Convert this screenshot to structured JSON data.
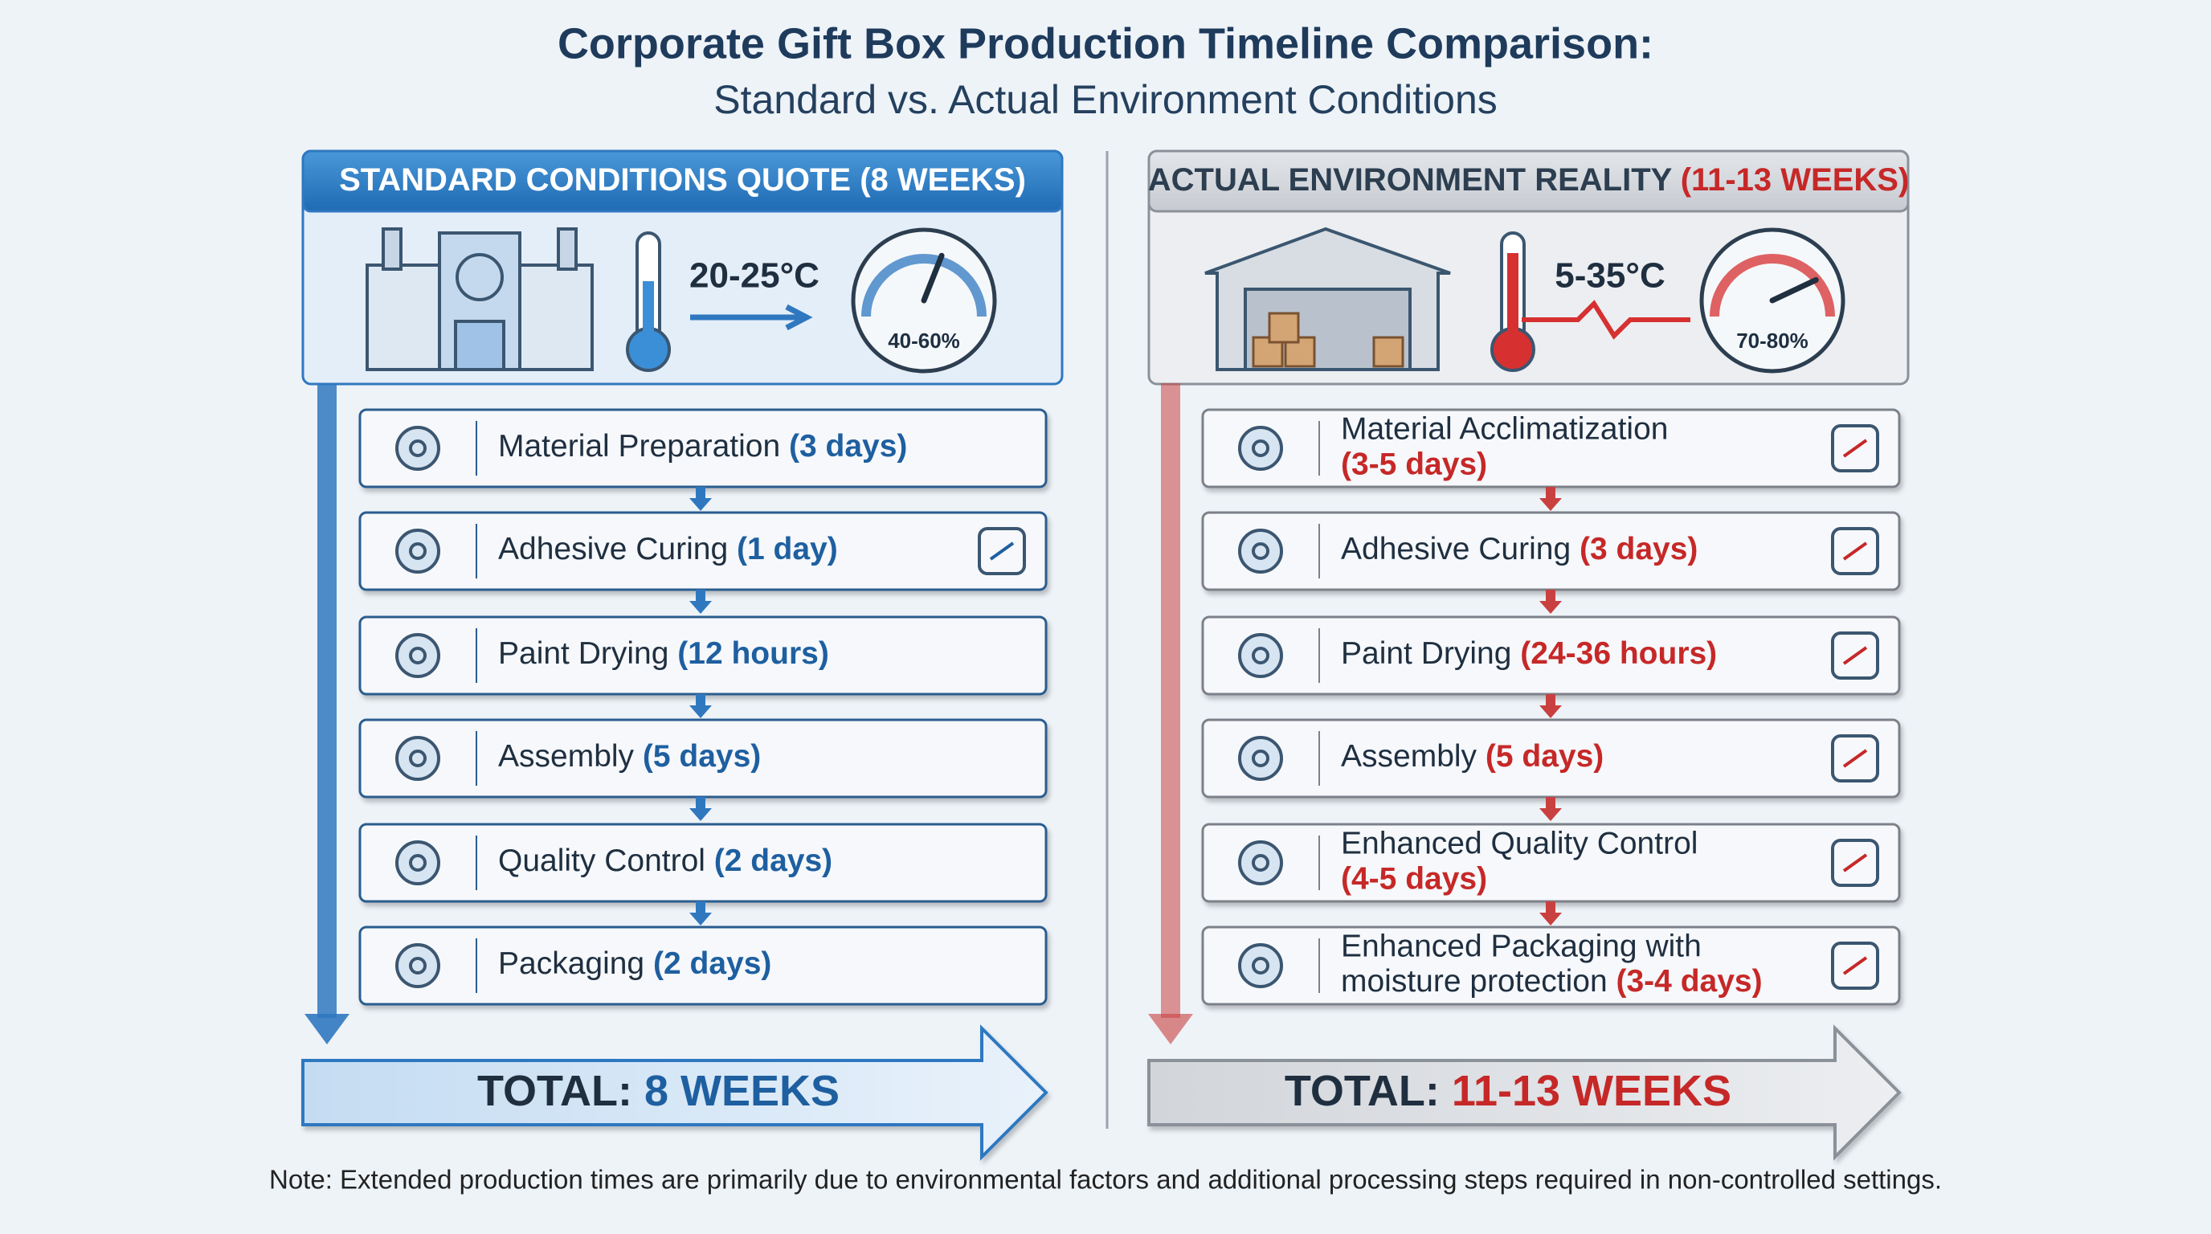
{
  "header": {
    "title": "Corporate Gift Box Production Timeline Comparison:",
    "subtitle": "Standard vs. Actual Environment Conditions"
  },
  "panels": [
    {
      "heading": "STANDARD CONDITIONS QUOTE",
      "heading_accent": "(8 WEEKS)",
      "temperature": "20-25°C",
      "humidity": "40-60%",
      "steps": [
        {
          "name": "Material Preparation",
          "duration": "(3 days)"
        },
        {
          "name": "Adhesive Curing",
          "duration": "(1 day)"
        },
        {
          "name": "Paint Drying",
          "duration": "(12 hours)"
        },
        {
          "name": "Assembly",
          "duration": "(5 days)"
        },
        {
          "name": "Quality Control",
          "duration": "(2 days)"
        },
        {
          "name": "Packaging",
          "duration": "(2 days)"
        }
      ],
      "total_label": "TOTAL:",
      "total_value": "8 WEEKS"
    },
    {
      "heading": "ACTUAL ENVIRONMENT REALITY",
      "heading_accent": "(11-13 WEEKS)",
      "temperature": "5-35°C",
      "humidity": "70-80%",
      "steps": [
        {
          "name": "Material Acclimatization",
          "duration": "(3-5 days)"
        },
        {
          "name": "Adhesive Curing",
          "duration": "(3 days)"
        },
        {
          "name": "Paint Drying",
          "duration": "(24-36 hours)"
        },
        {
          "name": "Assembly",
          "duration": "(5 days)"
        },
        {
          "name": "Enhanced Quality Control",
          "duration": "(4-5 days)"
        },
        {
          "name": "Enhanced Packaging with",
          "name2": "moisture protection",
          "duration": "(3-4 days)"
        }
      ],
      "total_label": "TOTAL:",
      "total_value": "11-13 WEEKS"
    }
  ],
  "note": "Note: Extended production times are primarily due to environmental factors and additional processing steps required in non-controlled settings."
}
